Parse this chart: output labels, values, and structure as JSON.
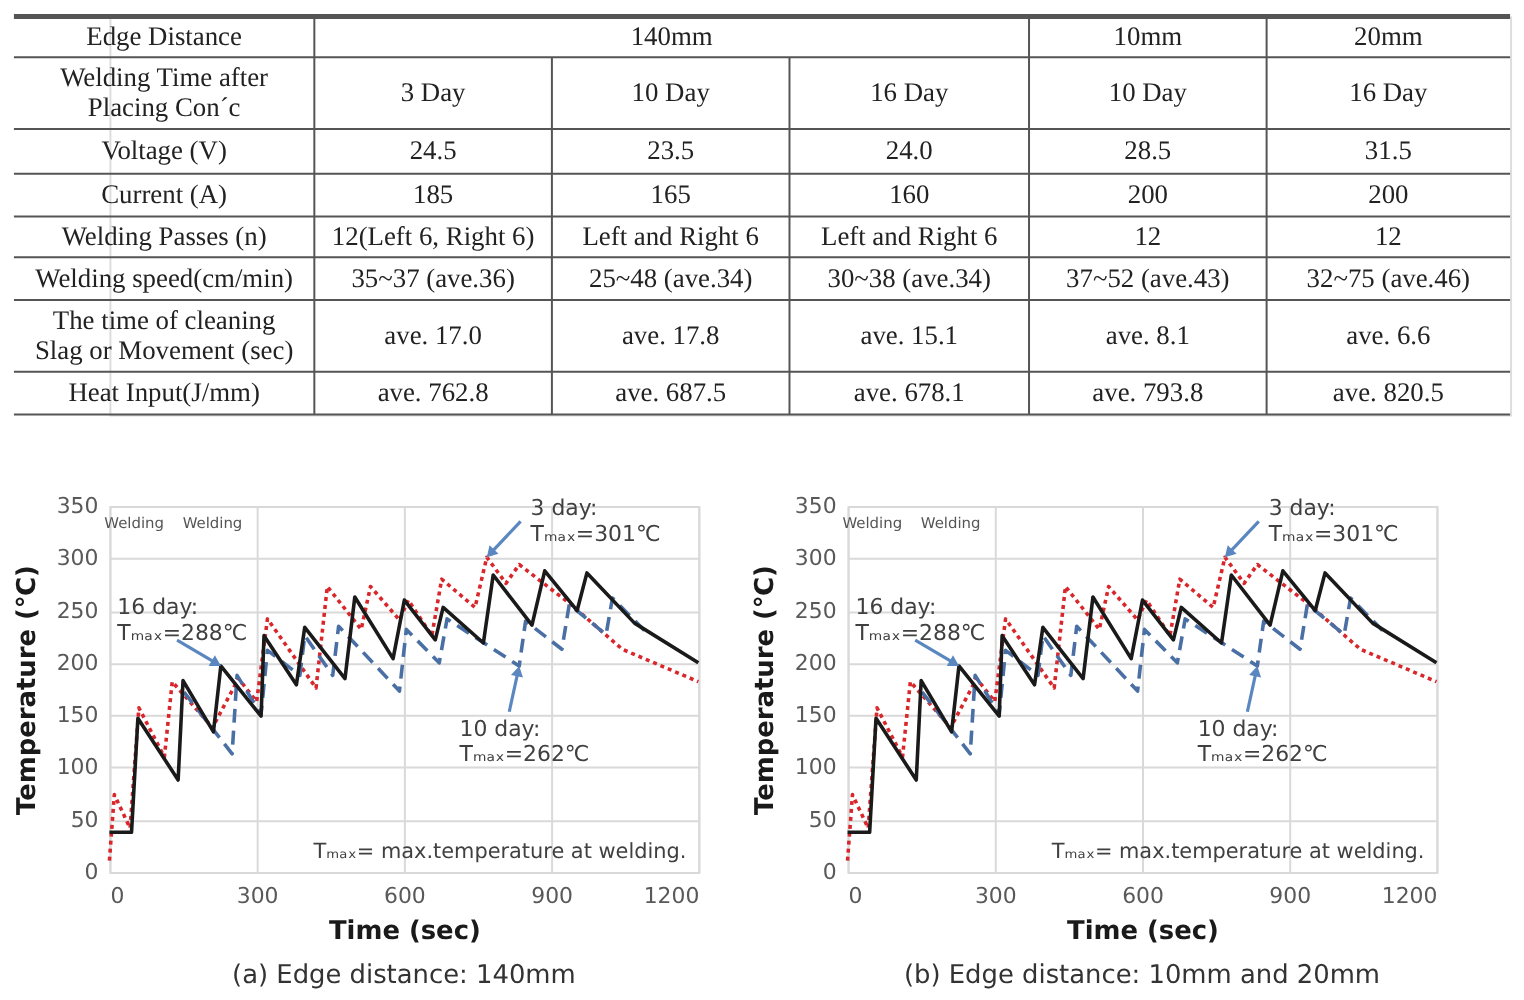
{
  "chart_data": [
    {
      "type": "other",
      "annotations": [
        "Edge Distance",
        "140mm",
        "10mm",
        "20mm",
        "Welding Time after\nPlacing Con´c",
        "3 Day",
        "10 Day",
        "16 Day",
        "10 Day",
        "16 Day",
        "Voltage (V)",
        "24.5",
        "23.5",
        "24.0",
        "28.5",
        "31.5",
        "Current (A)",
        "185",
        "165",
        "160",
        "200",
        "200",
        "Welding Passes (n)",
        "12(Left 6, Right 6)",
        "Left and Right 6",
        "Left and Right 6",
        "12",
        "12",
        "Welding speed(cm/min)",
        "35~37 (ave.36)",
        "25~48 (ave.34)",
        "30~38 (ave.34)",
        "37~52 (ave.43)",
        "32~75 (ave.46)",
        "The time of cleaning\nSlag or Movement (sec)",
        "ave. 17.0",
        "ave. 17.8",
        "ave. 15.1",
        "ave. 8.1",
        "ave. 6.6",
        "Heat Input(J/mm)",
        "ave. 762.8",
        "ave. 687.5",
        "ave. 678.1",
        "ave. 793.8",
        "ave. 820.5"
      ]
    },
    {
      "type": "line",
      "xlabel": "Time (sec)",
      "ylabel": "Temperature (℃)",
      "xlim": [
        0,
        1200
      ],
      "ylim": [
        0,
        350
      ],
      "xticks": [
        0,
        300,
        600,
        900,
        1200
      ],
      "yticks": [
        0,
        50,
        100,
        150,
        200,
        250,
        300,
        350
      ],
      "grid": true,
      "series": [
        {
          "color": "#d9262b",
          "line_style": "dotted",
          "x": [
            0,
            10,
            42,
            60,
            112,
            128,
            210,
            263,
            300,
            322,
            421,
            444,
            513,
            532,
            591,
            609,
            657,
            677,
            745,
            769,
            808,
            835,
            940,
            1045,
            1200
          ],
          "values": [
            11,
            74,
            42,
            157,
            110,
            182,
            138,
            185,
            163,
            242,
            176,
            273,
            232,
            273,
            241,
            260,
            226,
            280,
            253,
            301,
            276,
            294,
            256,
            213,
            182
          ]
        },
        {
          "color": "#4a6fa5",
          "line_style": "dashed",
          "x": [
            152,
            250,
            260,
            309,
            322,
            388,
            398,
            455,
            467,
            591,
            605,
            672,
            688,
            835,
            848,
            922,
            937,
            1012,
            1025,
            1090
          ],
          "values": [
            172,
            113,
            188,
            151,
            212,
            188,
            226,
            188,
            235,
            173,
            232,
            200,
            242,
            197,
            240,
            213,
            256,
            227,
            262,
            231
          ]
        },
        {
          "color": "#1a1a1a",
          "line_style": "solid",
          "x": [
            0,
            45,
            58,
            140,
            150,
            212,
            227,
            309,
            315,
            381,
            398,
            480,
            500,
            578,
            601,
            664,
            680,
            762,
            782,
            861,
            887,
            953,
            973,
            1070,
            1200
          ],
          "values": [
            38,
            38,
            147,
            88,
            183,
            134,
            197,
            149,
            226,
            179,
            234,
            185,
            263,
            204,
            260,
            222,
            253,
            219,
            284,
            236,
            288,
            250,
            286,
            238,
            200
          ]
        }
      ],
      "annotations": [
        {
          "text": "3 day:\nTₘₐₓ=301℃",
          "x": 769,
          "y": 301
        },
        {
          "text": "16 day:\nTₘₐₓ=288℃",
          "x": 227,
          "y": 197
        },
        {
          "text": "10 day:\nTₘₐₓ=262℃",
          "x": 835,
          "y": 197
        },
        "Tₘₐₓ= max.temperature at welding.",
        "(a) Edge distance: 140mm",
        "Welding",
        "Welding"
      ]
    },
    {
      "type": "line",
      "xlabel": "Time (sec)",
      "ylabel": "Temperature (℃)",
      "xlim": [
        0,
        1200
      ],
      "ylim": [
        0,
        350
      ],
      "xticks": [
        0,
        300,
        600,
        900,
        1200
      ],
      "yticks": [
        0,
        50,
        100,
        150,
        200,
        250,
        300,
        350
      ],
      "grid": true,
      "series": [
        {
          "color": "#d9262b",
          "line_style": "dotted",
          "x": [
            0,
            10,
            42,
            60,
            112,
            128,
            210,
            263,
            300,
            322,
            421,
            444,
            513,
            532,
            591,
            609,
            657,
            677,
            745,
            769,
            808,
            835,
            940,
            1045,
            1200
          ],
          "values": [
            11,
            74,
            42,
            157,
            110,
            182,
            138,
            185,
            163,
            242,
            176,
            273,
            232,
            273,
            241,
            260,
            226,
            280,
            253,
            301,
            276,
            294,
            256,
            213,
            182
          ]
        },
        {
          "color": "#4a6fa5",
          "line_style": "dashed",
          "x": [
            152,
            250,
            260,
            309,
            322,
            388,
            398,
            455,
            467,
            591,
            605,
            672,
            688,
            835,
            848,
            922,
            937,
            1012,
            1025,
            1090
          ],
          "values": [
            172,
            113,
            188,
            151,
            212,
            188,
            226,
            188,
            235,
            173,
            232,
            200,
            242,
            197,
            240,
            213,
            256,
            227,
            262,
            231
          ]
        },
        {
          "color": "#1a1a1a",
          "line_style": "solid",
          "x": [
            0,
            45,
            58,
            140,
            150,
            212,
            227,
            309,
            315,
            381,
            398,
            480,
            500,
            578,
            601,
            664,
            680,
            762,
            782,
            861,
            887,
            953,
            973,
            1070,
            1200
          ],
          "values": [
            38,
            38,
            147,
            88,
            183,
            134,
            197,
            149,
            226,
            179,
            234,
            185,
            263,
            204,
            260,
            222,
            253,
            219,
            284,
            236,
            288,
            250,
            286,
            238,
            200
          ]
        }
      ],
      "annotations": [
        {
          "text": "3 day:\nTₘₐₓ=301℃",
          "x": 769,
          "y": 301
        },
        {
          "text": "16 day:\nTₘₐₓ=288℃",
          "x": 227,
          "y": 197
        },
        {
          "text": "10 day:\nTₘₐₓ=262℃",
          "x": 835,
          "y": 197
        },
        "Tₘₐₓ= max.temperature at welding.",
        "(b) Edge distance: 10mm and 20mm",
        "Welding",
        "Welding"
      ]
    }
  ]
}
